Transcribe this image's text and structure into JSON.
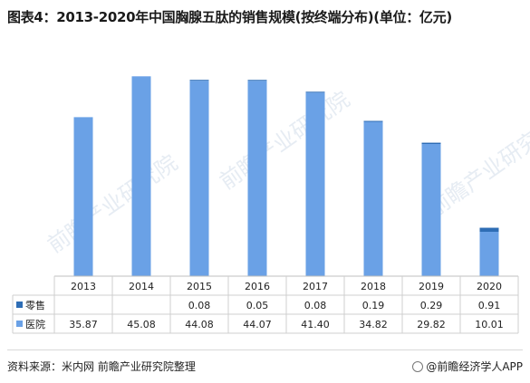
{
  "title": "图表4：2013-2020年中国胸腺五肽的销售规模(按终端分布)(单位：亿元)",
  "source": "资料来源：米内网 前瞻产业研究院整理",
  "brand": "@前瞻经济学人APP",
  "watermark": "前瞻产业研究院",
  "colors": {
    "retail": "#2e6db5",
    "hospital": "#6aa1e6"
  },
  "chart_data": {
    "type": "bar",
    "stacked": true,
    "categories": [
      "2013",
      "2014",
      "2015",
      "2016",
      "2017",
      "2018",
      "2019",
      "2020"
    ],
    "series": [
      {
        "name": "零售",
        "values": [
          null,
          null,
          0.08,
          0.05,
          0.08,
          0.19,
          0.29,
          0.91
        ],
        "labels": [
          "",
          "",
          "0.08",
          "0.05",
          "0.08",
          "0.19",
          "0.29",
          "0.91"
        ]
      },
      {
        "name": "医院",
        "values": [
          35.87,
          45.08,
          44.08,
          44.07,
          41.4,
          34.82,
          29.82,
          10.01
        ],
        "labels": [
          "35.87",
          "45.08",
          "44.08",
          "44.07",
          "41.40",
          "34.82",
          "29.82",
          "10.01"
        ]
      }
    ],
    "ylim": [
      0,
      48
    ],
    "legend": "data-table"
  }
}
